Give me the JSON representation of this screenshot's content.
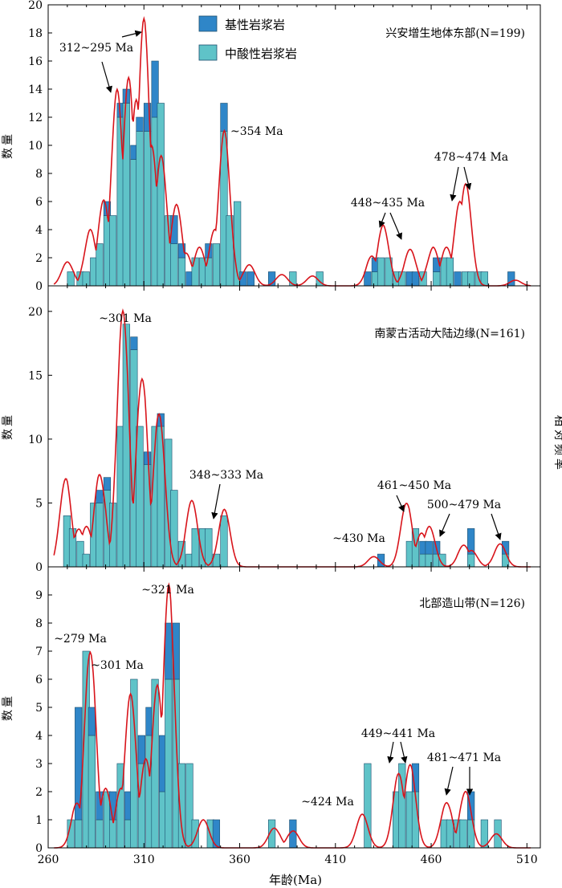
{
  "colors": {
    "basic": "#2f86c8",
    "intermediate": "#5fc3c8",
    "curve": "#d8141b",
    "frame": "#000000",
    "bar_edge": "#1d4f6e"
  },
  "legend": {
    "basic_label": "基性岩浆岩",
    "intermediate_label": "中酸性岩浆岩"
  },
  "right_axis_label": "相对频率",
  "chart_data": [
    {
      "type": "bar",
      "title": "兴安增生地体东部(N=199)",
      "ylabel": "数量",
      "xlim": [
        260,
        517
      ],
      "ylim": [
        0,
        20
      ],
      "yticks": [
        0,
        2,
        4,
        6,
        8,
        10,
        12,
        14,
        16,
        18,
        20
      ],
      "bin_width": 3.6,
      "bins_x": [
        270,
        289,
        292,
        296,
        299,
        303,
        306,
        310,
        314,
        317,
        321,
        324,
        328,
        332,
        335,
        339,
        342,
        346,
        350,
        353,
        357,
        360,
        364,
        375,
        386,
        400,
        425,
        429,
        432,
        436,
        440,
        443,
        447,
        450,
        454,
        461,
        465,
        468,
        472,
        476,
        479,
        483,
        486,
        500
      ],
      "bins_total": [
        1,
        6,
        5,
        13,
        14,
        10,
        12,
        13,
        16,
        13,
        5,
        5,
        3,
        1,
        2,
        2,
        3,
        3,
        13,
        5,
        6,
        1,
        1,
        1,
        1,
        1,
        1,
        2,
        2,
        2,
        1,
        1,
        1,
        1,
        1,
        2,
        2,
        2,
        1,
        1,
        1,
        1,
        1,
        1
      ],
      "bins_basic": [
        0,
        1,
        0,
        1,
        1,
        1,
        1,
        2,
        4,
        0,
        0,
        2,
        1,
        1,
        0,
        0,
        1,
        0,
        2,
        0,
        0,
        1,
        1,
        1,
        0,
        0,
        1,
        1,
        0,
        0,
        0,
        0,
        1,
        1,
        0,
        1,
        0,
        0,
        1,
        0,
        0,
        0,
        0,
        1
      ],
      "bins_extra": [
        [
          275,
          1
        ],
        [
          278,
          1
        ],
        [
          282,
          2
        ],
        [
          285,
          3
        ]
      ],
      "kde_peaks": [
        [
          270,
          1.7
        ],
        [
          282,
          3.8
        ],
        [
          289,
          5.8
        ],
        [
          296,
          13.3
        ],
        [
          302,
          14.1
        ],
        [
          306,
          12.6
        ],
        [
          310,
          18.1
        ],
        [
          314,
          9.5
        ],
        [
          319,
          8.8
        ],
        [
          327,
          5.5
        ],
        [
          332,
          2.2
        ],
        [
          339,
          2.6
        ],
        [
          347,
          3.8
        ],
        [
          352,
          10.5
        ],
        [
          365,
          1.5
        ],
        [
          382,
          0.8
        ],
        [
          398,
          0.7
        ],
        [
          429,
          2.0
        ],
        [
          435,
          4.1
        ],
        [
          449,
          2.6
        ],
        [
          461,
          2.6
        ],
        [
          468,
          2.6
        ],
        [
          475,
          5.7
        ],
        [
          478,
          6.9
        ],
        [
          504,
          0.4
        ]
      ],
      "annotations": [
        {
          "text": "312~295 Ma"
        },
        {
          "text": "~354 Ma"
        },
        {
          "text": "448~435 Ma"
        },
        {
          "text": "478~474 Ma"
        }
      ]
    },
    {
      "type": "bar",
      "title": "南蒙古活动大陆边缘(N=161)",
      "ylabel": "数量",
      "xlim": [
        260,
        517
      ],
      "ylim": [
        0,
        22
      ],
      "yticks": [
        0,
        5,
        10,
        15,
        20
      ],
      "bin_width": 3.6,
      "bins_x": [
        268,
        271,
        275,
        278,
        282,
        285,
        289,
        292,
        296,
        299,
        303,
        306,
        310,
        314,
        317,
        321,
        324,
        328,
        332,
        335,
        339,
        342,
        346,
        350,
        432,
        447,
        450,
        454,
        457,
        461,
        464,
        479,
        497
      ],
      "bins_total": [
        4,
        3,
        2,
        1,
        5,
        6,
        7,
        5,
        11,
        19,
        18,
        11,
        9,
        11,
        12,
        10,
        6,
        2,
        1,
        3,
        3,
        3,
        1,
        4,
        1,
        2,
        3,
        2,
        2,
        2,
        1,
        3,
        2
      ],
      "bins_basic": [
        0,
        0,
        0,
        0,
        0,
        1,
        1,
        0,
        0,
        0,
        1,
        0,
        1,
        0,
        1,
        0,
        0,
        0,
        0,
        0,
        0,
        0,
        0,
        0,
        1,
        0,
        0,
        1,
        1,
        1,
        0,
        2,
        1
      ],
      "kde_peaks": [
        [
          269,
          6.7
        ],
        [
          276,
          2.8
        ],
        [
          280,
          3.0
        ],
        [
          287,
          7.0
        ],
        [
          299,
          20.0
        ],
        [
          309,
          14.5
        ],
        [
          318,
          11.8
        ],
        [
          335,
          5.2
        ],
        [
          352,
          4.5
        ],
        [
          430,
          0.8
        ],
        [
          447,
          4.9
        ],
        [
          455,
          2.5
        ],
        [
          459,
          3.0
        ],
        [
          477,
          1.6
        ],
        [
          481,
          1.2
        ],
        [
          496,
          1.8
        ]
      ],
      "annotations": [
        {
          "text": "~301 Ma"
        },
        {
          "text": "348~333 Ma"
        },
        {
          "text": "~430 Ma"
        },
        {
          "text": "461~450 Ma"
        },
        {
          "text": "500~479 Ma"
        }
      ]
    },
    {
      "type": "bar",
      "title": "北部造山带(N=126)",
      "ylabel": "数量",
      "xlim": [
        260,
        517
      ],
      "ylim": [
        0,
        10
      ],
      "yticks": [
        0,
        1,
        2,
        3,
        4,
        5,
        6,
        7,
        8,
        9
      ],
      "bin_width": 3.6,
      "bins_x": [
        270,
        274,
        278,
        281,
        285,
        289,
        292,
        296,
        300,
        303,
        307,
        311,
        314,
        318,
        321,
        325,
        328,
        332,
        335,
        343,
        346,
        375,
        386,
        425,
        440,
        443,
        447,
        450,
        465,
        468,
        472,
        475,
        479,
        486,
        493
      ],
      "bins_total": [
        1,
        5,
        7,
        5,
        2,
        2,
        2,
        3,
        2,
        6,
        4,
        5,
        6,
        4,
        8,
        8,
        3,
        3,
        1,
        1,
        1,
        1,
        1,
        3,
        2,
        3,
        2,
        3,
        1,
        1,
        1,
        1,
        2,
        1,
        1
      ],
      "bins_basic": [
        0,
        4,
        0,
        1,
        1,
        0,
        1,
        0,
        1,
        0,
        1,
        1,
        0,
        2,
        2,
        2,
        0,
        0,
        0,
        0,
        1,
        0,
        1,
        0,
        0,
        0,
        0,
        1,
        0,
        0,
        0,
        0,
        1,
        0,
        0
      ],
      "kde_peaks": [
        [
          275,
          1.5
        ],
        [
          282,
          6.8
        ],
        [
          290,
          2.0
        ],
        [
          298,
          2.0
        ],
        [
          303,
          5.2
        ],
        [
          311,
          3.0
        ],
        [
          317,
          5.5
        ],
        [
          323,
          8.9
        ],
        [
          341,
          1.0
        ],
        [
          378,
          0.7
        ],
        [
          388,
          0.6
        ],
        [
          424,
          1.2
        ],
        [
          443,
          2.5
        ],
        [
          449,
          2.8
        ],
        [
          468,
          1.6
        ],
        [
          478,
          2.0
        ],
        [
          494,
          0.5
        ]
      ],
      "annotations": [
        {
          "text": "~279 Ma"
        },
        {
          "text": "~301 Ma"
        },
        {
          "text": "~321 Ma"
        },
        {
          "text": "~424 Ma"
        },
        {
          "text": "449~441 Ma"
        },
        {
          "text": "481~471 Ma"
        }
      ]
    }
  ],
  "x_axis": {
    "label": "年龄(Ma)",
    "ticks": [
      260,
      310,
      360,
      410,
      460,
      510
    ]
  }
}
